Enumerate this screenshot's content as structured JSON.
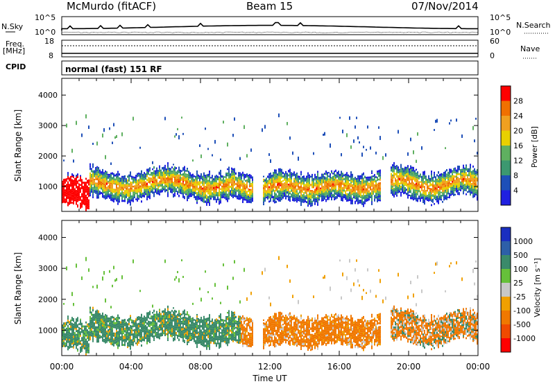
{
  "header": {
    "station": "McMurdo (fitACF)",
    "beam": "Beam 15",
    "date": "07/Nov/2014"
  },
  "left_labels": {
    "nsky": "N.Sky",
    "freq": "Freq.",
    "freq_unit": "[MHz]",
    "cpid": "CPID"
  },
  "right_labels": {
    "nsearch": "N.Search",
    "nave": "Nave"
  },
  "mode_text": "normal (fast) 151 RF",
  "noise_panel": {
    "ticks_left": [
      "10^5",
      "10^0"
    ],
    "ticks_right": [
      "10^5",
      "10^0"
    ]
  },
  "freq_panel": {
    "ticks_left": [
      "18",
      "8"
    ],
    "ticks_right": [
      "60",
      "0"
    ]
  },
  "chart_data": [
    {
      "type": "heatmap",
      "name_id": "power",
      "title": "",
      "xlabel": "",
      "ylabel": "Slant Range [km]",
      "yticks": [
        1000,
        2000,
        3000,
        4000
      ],
      "ylim": [
        180,
        4550
      ],
      "colorbar": {
        "label": "Power [dB]",
        "ticks": [
          "4",
          "8",
          "12",
          "16",
          "20",
          "24",
          "28"
        ],
        "colors": [
          "#2020e0",
          "#1e4fb8",
          "#3c9870",
          "#5fb060",
          "#e8d000",
          "#f0a020",
          "#f07000",
          "#ff0000"
        ]
      }
    },
    {
      "type": "heatmap",
      "name_id": "velocity",
      "title": "",
      "xlabel": "Time UT",
      "ylabel": "Slant Range [km]",
      "yticks": [
        1000,
        2000,
        3000,
        4000
      ],
      "ylim": [
        180,
        4550
      ],
      "xticks": [
        "00:00",
        "04:00",
        "08:00",
        "12:00",
        "16:00",
        "20:00",
        "00:00"
      ],
      "xlim_hours": [
        0,
        24
      ],
      "colorbar": {
        "label": "Velocity [m s⁻¹]",
        "ticks": [
          "1000",
          "500",
          "100",
          "25",
          "-25",
          "-100",
          "-500",
          "-1000"
        ],
        "colors": [
          "#1a2fc0",
          "#2d5fa8",
          "#3a8a6a",
          "#66c03a",
          "#c8c8c8",
          "#f0a000",
          "#f07800",
          "#f04a00",
          "#ff0000"
        ]
      }
    }
  ]
}
